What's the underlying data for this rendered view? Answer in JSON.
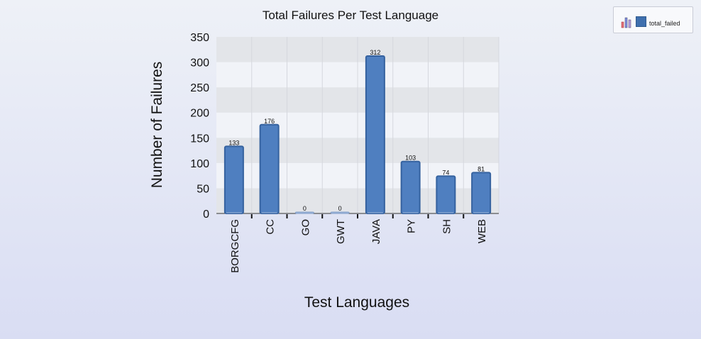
{
  "chart_data": {
    "type": "bar",
    "title": "Total Failures Per Test Language",
    "xlabel": "Test Languages",
    "ylabel": "Number of Failures",
    "categories": [
      "BORGCFG",
      "CC",
      "GO",
      "GWT",
      "JAVA",
      "PY",
      "SH",
      "WEB"
    ],
    "series": [
      {
        "name": "total_failed",
        "values": [
          133,
          176,
          0,
          0,
          312,
          103,
          74,
          81
        ],
        "color": "#4f7fc0"
      }
    ],
    "data_labels": [
      "133",
      "176",
      "0",
      "0",
      "312",
      "103",
      "74",
      "81"
    ],
    "yticks": [
      "0",
      "50",
      "100",
      "150",
      "200",
      "250",
      "300",
      "350"
    ],
    "ylim": [
      0,
      350
    ],
    "grid": true,
    "legend_position": "top-right"
  }
}
